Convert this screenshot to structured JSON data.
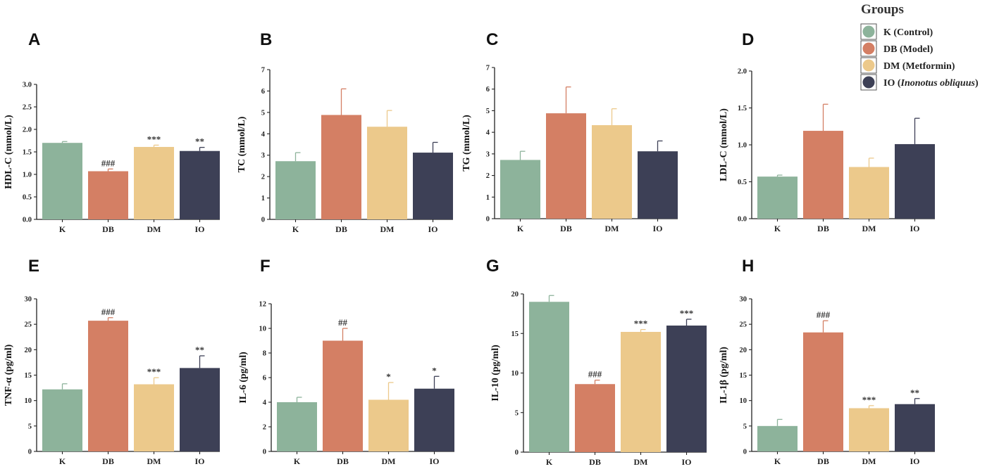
{
  "legend": {
    "title": "Groups",
    "entries": [
      {
        "label_main": "K (Control)",
        "label_ital": "",
        "label_end": "",
        "color": "#8db39b"
      },
      {
        "label_main": "DB (Model)",
        "label_ital": "",
        "label_end": "",
        "color": "#d47f64"
      },
      {
        "label_main": "DM (Metformin)",
        "label_ital": "",
        "label_end": "",
        "color": "#ecc98b"
      },
      {
        "label_main": "IO (",
        "label_ital": "Inonotus obliquus",
        "label_end": ")",
        "color": "#3d4056"
      }
    ]
  },
  "chart_data": [
    {
      "panel": "A",
      "type": "bar",
      "ylabel": "HDL-C (mmol/L)",
      "categories": [
        "K",
        "DB",
        "DM",
        "IO"
      ],
      "values": [
        1.7,
        1.07,
        1.61,
        1.52
      ],
      "errors": [
        0.03,
        0.05,
        0.04,
        0.08
      ],
      "annotations": [
        "",
        "###",
        "***",
        "**"
      ],
      "ylim": [
        0,
        3.0
      ],
      "ticks": [
        "0.0",
        "0.5",
        "1.0",
        "1.5",
        "2.0",
        "2.5",
        "3.0"
      ],
      "tick_values": [
        0,
        0.5,
        1,
        1.5,
        2,
        2.5,
        3
      ]
    },
    {
      "panel": "B",
      "type": "bar",
      "ylabel": "TC  (mmol/L)",
      "categories": [
        "K",
        "DB",
        "DM",
        "IO"
      ],
      "values": [
        2.72,
        4.88,
        4.33,
        3.12
      ],
      "errors": [
        0.4,
        1.22,
        0.76,
        0.48
      ],
      "annotations": [
        "",
        "",
        "",
        ""
      ],
      "ylim": [
        0,
        7
      ],
      "ticks": [
        "0",
        "1",
        "2",
        "3",
        "4",
        "5",
        "6",
        "7"
      ],
      "tick_values": [
        0,
        1,
        2,
        3,
        4,
        5,
        6,
        7
      ]
    },
    {
      "panel": "C",
      "type": "bar",
      "ylabel": "TG (mmol/L)",
      "categories": [
        "K",
        "DB",
        "DM",
        "IO"
      ],
      "values": [
        2.72,
        4.88,
        4.33,
        3.12
      ],
      "errors": [
        0.4,
        1.22,
        0.76,
        0.48
      ],
      "annotations": [
        "",
        "",
        "",
        ""
      ],
      "ylim": [
        0,
        7
      ],
      "ticks": [
        "0",
        "1",
        "2",
        "3",
        "4",
        "5",
        "6",
        "7"
      ],
      "tick_values": [
        0,
        1,
        2,
        3,
        4,
        5,
        6,
        7
      ]
    },
    {
      "panel": "D",
      "type": "bar",
      "ylabel": "LDL-C (mmol/L)",
      "categories": [
        "K",
        "DB",
        "DM",
        "IO"
      ],
      "values": [
        0.57,
        1.19,
        0.7,
        1.01
      ],
      "errors": [
        0.02,
        0.36,
        0.12,
        0.35
      ],
      "annotations": [
        "",
        "",
        "",
        ""
      ],
      "ylim": [
        0,
        2.0
      ],
      "ticks": [
        "0.0",
        "0.5",
        "1.0",
        "1.5",
        "2.0"
      ],
      "tick_values": [
        0,
        0.5,
        1,
        1.5,
        2
      ]
    },
    {
      "panel": "E",
      "type": "bar",
      "ylabel": "TNF-α (pg/ml)",
      "categories": [
        "K",
        "DB",
        "DM",
        "IO"
      ],
      "values": [
        12.2,
        25.7,
        13.2,
        16.4
      ],
      "errors": [
        1.1,
        0.6,
        1.3,
        2.4
      ],
      "annotations": [
        "",
        "###",
        "***",
        "**"
      ],
      "ylim": [
        0,
        30
      ],
      "ticks": [
        "0",
        "5",
        "10",
        "15",
        "20",
        "25",
        "30"
      ],
      "tick_values": [
        0,
        5,
        10,
        15,
        20,
        25,
        30
      ]
    },
    {
      "panel": "F",
      "type": "bar",
      "ylabel": "IL-6 (pg/ml)",
      "categories": [
        "K",
        "DB",
        "DM",
        "IO"
      ],
      "values": [
        4.0,
        9.0,
        4.2,
        5.1
      ],
      "errors": [
        0.4,
        1.0,
        1.4,
        1.0
      ],
      "annotations": [
        "",
        "##",
        "*",
        "*"
      ],
      "ylim": [
        0,
        12
      ],
      "ticks": [
        "0",
        "2",
        "4",
        "6",
        "8",
        "10",
        "12"
      ],
      "tick_values": [
        0,
        2,
        4,
        6,
        8,
        10,
        12
      ]
    },
    {
      "panel": "G",
      "type": "bar",
      "ylabel": "IL-10 (pg/ml)",
      "categories": [
        "K",
        "DB",
        "DM",
        "IO"
      ],
      "values": [
        19.0,
        8.6,
        15.2,
        16.0
      ],
      "errors": [
        0.8,
        0.5,
        0.3,
        0.8
      ],
      "annotations": [
        "",
        "###",
        "***",
        "***"
      ],
      "ylim": [
        0,
        20
      ],
      "ticks": [
        "0",
        "5",
        "10",
        "15",
        "20"
      ],
      "tick_values": [
        0,
        5,
        10,
        15,
        20
      ]
    },
    {
      "panel": "H",
      "type": "bar",
      "ylabel": "IL-1β (pg/ml)",
      "categories": [
        "K",
        "DB",
        "DM",
        "IO"
      ],
      "values": [
        5.0,
        23.4,
        8.5,
        9.3
      ],
      "errors": [
        1.3,
        2.3,
        0.5,
        1.1
      ],
      "annotations": [
        "",
        "###",
        "***",
        "**"
      ],
      "ylim": [
        0,
        30
      ],
      "ticks": [
        "0",
        "5",
        "10",
        "15",
        "20",
        "25",
        "30"
      ],
      "tick_values": [
        0,
        5,
        10,
        15,
        20,
        25,
        30
      ]
    }
  ]
}
